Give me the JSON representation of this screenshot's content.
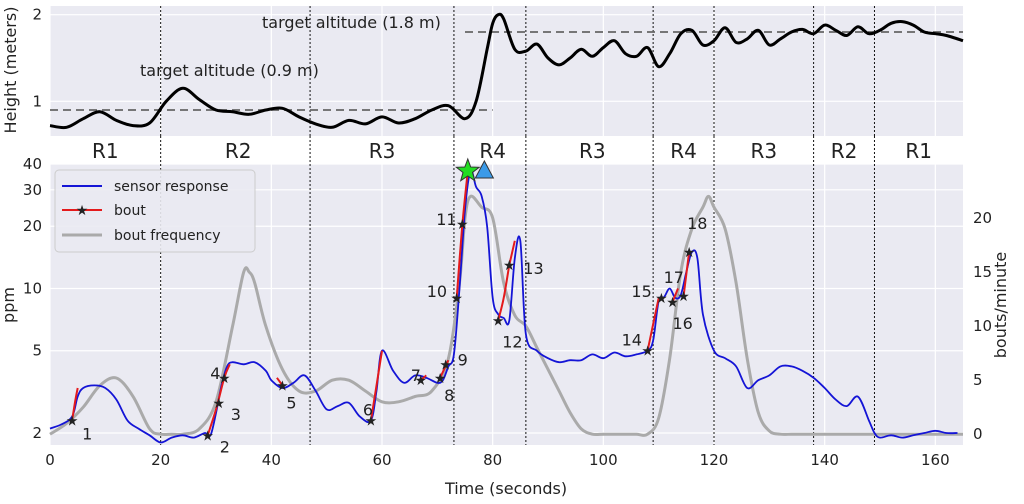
{
  "chart_data": [
    {
      "type": "line",
      "panel": "top",
      "ylabel": "Height (meters)",
      "ylim": [
        0.6,
        2.1
      ],
      "yticks": [
        1,
        2
      ],
      "xlim": [
        0,
        165
      ],
      "grid": true,
      "series": [
        {
          "name": "",
          "x": [
            0,
            3,
            6,
            9,
            12,
            15,
            18,
            21,
            24,
            27,
            30,
            33,
            36,
            39,
            42,
            45,
            48,
            51,
            54,
            57,
            60,
            63,
            66,
            69,
            72,
            75,
            77,
            79,
            80,
            81,
            82,
            84,
            86,
            88,
            90,
            92,
            94,
            96,
            98,
            100,
            102,
            104,
            106,
            108,
            110,
            112,
            114,
            116,
            118,
            120,
            122,
            124,
            126,
            128,
            130,
            132,
            134,
            136,
            138,
            140,
            142,
            144,
            146,
            148,
            150,
            152,
            154,
            156,
            158,
            160,
            162,
            165
          ],
          "y": [
            0.72,
            0.7,
            0.8,
            0.88,
            0.78,
            0.72,
            0.75,
            1.0,
            1.15,
            1.02,
            0.9,
            0.88,
            0.85,
            0.9,
            0.92,
            0.82,
            0.74,
            0.7,
            0.78,
            0.74,
            0.82,
            0.75,
            0.8,
            0.9,
            0.95,
            0.8,
            1.0,
            1.6,
            1.9,
            2.0,
            1.95,
            1.6,
            1.58,
            1.66,
            1.5,
            1.42,
            1.5,
            1.6,
            1.52,
            1.62,
            1.7,
            1.55,
            1.52,
            1.62,
            1.4,
            1.55,
            1.78,
            1.82,
            1.65,
            1.7,
            1.85,
            1.68,
            1.72,
            1.82,
            1.65,
            1.72,
            1.8,
            1.83,
            1.78,
            1.88,
            1.82,
            1.76,
            1.86,
            1.78,
            1.82,
            1.9,
            1.92,
            1.88,
            1.8,
            1.78,
            1.76,
            1.7
          ]
        }
      ],
      "annotations": [
        {
          "text": "target altitude (0.9 m)",
          "y": 0.9,
          "x_range": [
            0,
            80
          ]
        },
        {
          "text": "target altitude (1.8 m)",
          "y": 1.8,
          "x_range": [
            75,
            165
          ]
        }
      ],
      "region_boundaries": [
        20,
        47,
        73,
        86,
        109,
        120,
        138,
        149
      ],
      "region_labels": [
        {
          "label": "R1",
          "x": 10
        },
        {
          "label": "R2",
          "x": 34
        },
        {
          "label": "R3",
          "x": 60
        },
        {
          "label": "R4",
          "x": 80
        },
        {
          "label": "R3",
          "x": 98
        },
        {
          "label": "R4",
          "x": 114.5
        },
        {
          "label": "R3",
          "x": 129
        },
        {
          "label": "R2",
          "x": 143.5
        },
        {
          "label": "R1",
          "x": 157
        }
      ]
    },
    {
      "type": "line",
      "panel": "bottom",
      "xlabel": "Time (seconds)",
      "ylabel": "ppm",
      "y2label": "bouts/minute",
      "log_y": true,
      "ylim": [
        1.75,
        40
      ],
      "yticks": [
        2,
        5,
        10,
        20,
        30,
        40
      ],
      "y2lim": [
        -1,
        25
      ],
      "y2ticks": [
        0,
        5,
        10,
        15,
        20
      ],
      "xlim": [
        0,
        165
      ],
      "xticks": [
        0,
        20,
        40,
        60,
        80,
        100,
        120,
        140,
        160
      ],
      "grid": true,
      "legend_position": "top-left",
      "legend": [
        "sensor response",
        "bout",
        "bout frequency"
      ],
      "series": [
        {
          "name": "sensor response",
          "color": "#1414d6",
          "x": [
            0,
            2,
            4,
            5,
            6,
            8,
            10,
            12,
            14,
            16,
            18,
            20,
            22,
            24,
            26,
            28,
            29,
            30,
            31,
            32,
            33,
            35,
            37,
            39,
            40,
            42,
            44,
            46,
            48,
            50,
            52,
            54,
            56,
            58,
            59,
            60,
            62,
            64,
            66,
            68,
            70,
            71,
            72,
            73,
            74,
            75,
            76,
            77,
            78,
            79,
            80,
            81,
            82,
            83,
            84,
            85,
            86,
            88,
            90,
            92,
            94,
            96,
            98,
            100,
            102,
            104,
            106,
            108,
            109,
            110,
            111,
            112,
            113,
            114,
            115,
            116,
            117,
            118,
            120,
            122,
            124,
            126,
            128,
            130,
            132,
            134,
            136,
            138,
            140,
            142,
            144,
            146,
            148,
            149,
            150,
            152,
            154,
            156,
            158,
            160,
            162,
            164
          ],
          "y": [
            2.1,
            2.2,
            2.4,
            3.0,
            3.3,
            3.4,
            3.3,
            2.9,
            2.3,
            2.1,
            1.95,
            1.8,
            1.9,
            1.95,
            1.9,
            2.0,
            1.95,
            2.5,
            3.4,
            4.2,
            4.4,
            4.3,
            4.4,
            4.0,
            3.6,
            3.3,
            3.5,
            3.8,
            3.2,
            2.6,
            2.7,
            2.8,
            2.4,
            2.3,
            3.2,
            5.0,
            4.0,
            3.5,
            3.8,
            3.7,
            3.5,
            3.6,
            4.2,
            4.8,
            10,
            24,
            37,
            31,
            28,
            20,
            9,
            7.5,
            7.2,
            7.0,
            14,
            17,
            6.0,
            5.0,
            4.6,
            4.4,
            4.5,
            4.5,
            4.8,
            4.6,
            4.9,
            4.7,
            4.8,
            5.0,
            5.6,
            8.7,
            9.1,
            10,
            9.0,
            9.3,
            12,
            15,
            14,
            7.5,
            5.0,
            4.6,
            4.2,
            3.3,
            3.6,
            3.8,
            4.2,
            4.2,
            4.0,
            3.7,
            3.3,
            2.9,
            2.7,
            3.0,
            2.3,
            2.0,
            1.9,
            1.95,
            1.9,
            1.95,
            2.0,
            2.05,
            2.0,
            2.0
          ]
        },
        {
          "name": "bout frequency",
          "color": "#aaaaaa",
          "x": [
            0,
            3,
            6,
            9,
            12,
            15,
            18,
            20,
            22,
            24,
            27,
            30,
            33,
            35,
            36,
            37,
            39,
            42,
            45,
            48,
            51,
            54,
            57,
            60,
            63,
            66,
            69,
            72,
            74,
            75,
            76,
            78,
            80,
            82,
            84,
            86,
            88,
            90,
            92,
            94,
            96,
            98,
            100,
            102,
            104,
            106,
            108,
            110,
            112,
            114,
            116,
            118,
            119,
            120,
            122,
            124,
            126,
            128,
            130,
            132,
            134,
            136,
            138,
            140,
            145,
            150,
            155,
            160,
            165
          ],
          "y": [
            0,
            1,
            2.5,
            4.5,
            5.2,
            3.5,
            0.5,
            0,
            0,
            0,
            0.5,
            3,
            10,
            15,
            15,
            14,
            10,
            6,
            4,
            4,
            5,
            5,
            4,
            3,
            3,
            3.5,
            4,
            7,
            14,
            20,
            22,
            21,
            20,
            14,
            11,
            10,
            8,
            6,
            4,
            2,
            0.5,
            0,
            0,
            0,
            0,
            0,
            0,
            1.5,
            7,
            15,
            19,
            21,
            22,
            21,
            19,
            14,
            7,
            2,
            0.3,
            0,
            0,
            0,
            0,
            0,
            0,
            0,
            0,
            0,
            0
          ]
        }
      ],
      "bout_segments": [
        [
          [
            4,
            2.3
          ],
          [
            4.5,
            2.8
          ],
          [
            5,
            3.3
          ]
        ],
        [
          [
            28.5,
            1.95
          ],
          [
            30,
            2.6
          ],
          [
            31.5,
            3.7
          ],
          [
            32.5,
            4.3
          ]
        ],
        [
          [
            42,
            3.4
          ],
          [
            41,
            3.7
          ]
        ],
        [
          [
            58,
            2.3
          ],
          [
            60,
            5.0
          ]
        ],
        [
          [
            67,
            3.6
          ],
          [
            68,
            3.8
          ]
        ],
        [
          [
            70.5,
            3.7
          ],
          [
            72,
            4.5
          ]
        ],
        [
          [
            73.5,
            9.0
          ],
          [
            74.5,
            20
          ],
          [
            75.5,
            37
          ]
        ],
        [
          [
            81,
            7.0
          ],
          [
            82,
            9
          ],
          [
            83,
            13
          ]
        ],
        [
          [
            83,
            13
          ],
          [
            84,
            17
          ]
        ],
        [
          [
            108,
            5.0
          ],
          [
            110,
            9.0
          ]
        ],
        [
          [
            112.5,
            8.6
          ],
          [
            113.5,
            10
          ]
        ],
        [
          [
            114.5,
            9.2
          ],
          [
            115.5,
            15
          ]
        ]
      ],
      "bout_points": [
        {
          "label": "1",
          "x": 4,
          "y": 2.3
        },
        {
          "label": "2",
          "x": 28.5,
          "y": 1.95
        },
        {
          "label": "3",
          "x": 30.5,
          "y": 2.8
        },
        {
          "label": "4",
          "x": 31.5,
          "y": 3.7
        },
        {
          "label": "5",
          "x": 42,
          "y": 3.4
        },
        {
          "label": "6",
          "x": 58,
          "y": 2.3
        },
        {
          "label": "7",
          "x": 67,
          "y": 3.6
        },
        {
          "label": "8",
          "x": 70.5,
          "y": 3.7
        },
        {
          "label": "9",
          "x": 71.5,
          "y": 4.3
        },
        {
          "label": "10",
          "x": 73.5,
          "y": 9.0
        },
        {
          "label": "11",
          "x": 74.5,
          "y": 20.5
        },
        {
          "label": "12",
          "x": 81,
          "y": 7.0
        },
        {
          "label": "13",
          "x": 83,
          "y": 13
        },
        {
          "label": "14",
          "x": 108,
          "y": 5.0
        },
        {
          "label": "15",
          "x": 110.5,
          "y": 9.0
        },
        {
          "label": "16",
          "x": 112.5,
          "y": 8.6
        },
        {
          "label": "17",
          "x": 114.5,
          "y": 9.2
        },
        {
          "label": "18",
          "x": 115.5,
          "y": 15
        }
      ],
      "markers": [
        {
          "shape": "star",
          "color": "#22dd22",
          "x": 75.5,
          "y": 37
        },
        {
          "shape": "triangle",
          "color": "#3b9ae8",
          "x": 78.5,
          "y": 37
        }
      ],
      "region_boundaries": [
        20,
        47,
        73,
        86,
        109,
        120,
        138,
        149
      ]
    }
  ]
}
